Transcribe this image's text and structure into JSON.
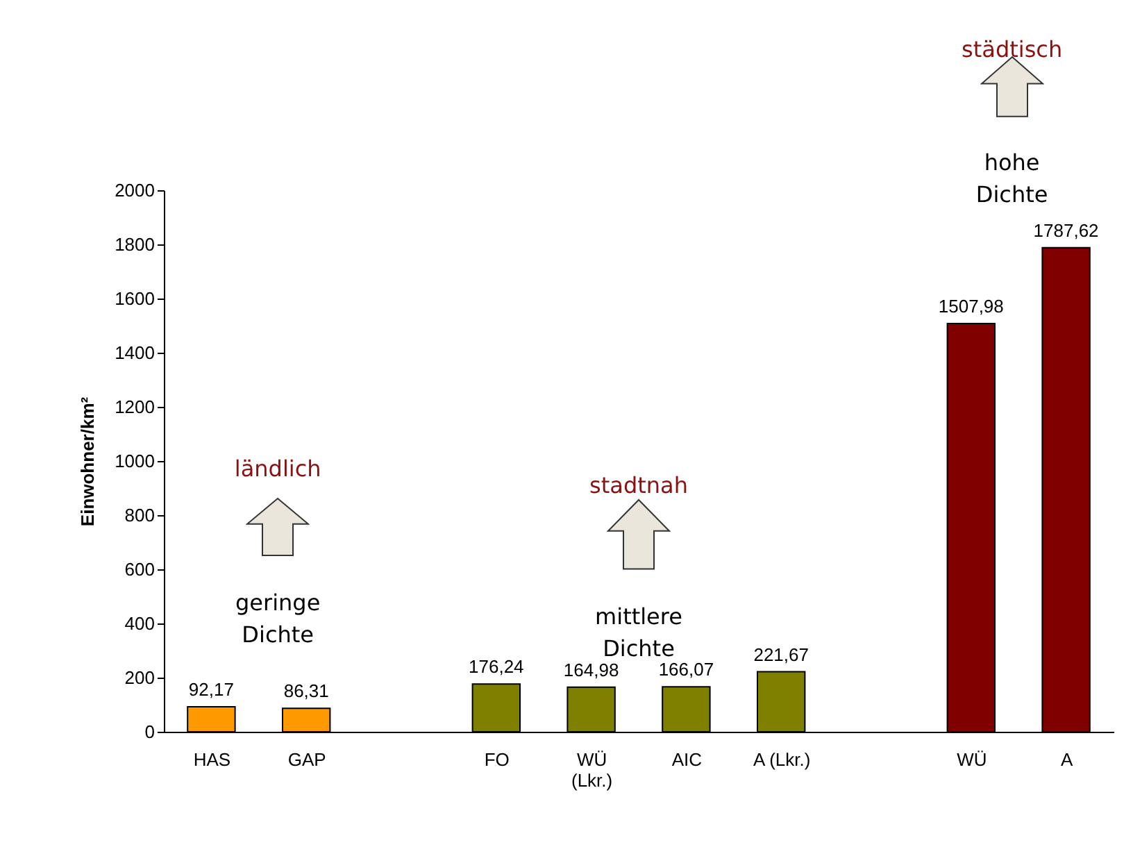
{
  "chart_data": {
    "type": "bar",
    "ylabel": "Einwohner/km²",
    "categories": [
      "HAS",
      "GAP",
      null,
      "FO",
      "WÜ\n(Lkr.)",
      "AIC",
      "A (Lkr.)",
      null,
      "WÜ",
      "A"
    ],
    "values": [
      92.17,
      86.31,
      null,
      176.24,
      164.98,
      166.07,
      221.67,
      null,
      1507.98,
      1787.62
    ],
    "value_labels": [
      "92,17",
      "86,31",
      null,
      "176,24",
      "164,98",
      "166,07",
      "221,67",
      null,
      "1507,98",
      "1787,62"
    ],
    "colors": [
      "#ff9900",
      "#ff9900",
      null,
      "#808000",
      "#808000",
      "#808000",
      "#808000",
      null,
      "#800000",
      "#800000"
    ],
    "ylim": [
      0,
      2000
    ],
    "yticks": [
      0,
      200,
      400,
      600,
      800,
      1000,
      1200,
      1400,
      1600,
      1800,
      2000
    ],
    "annotations": [
      "ländlich",
      "geringe\nDichte",
      "stadtnah",
      "mittlere\nDichte",
      "städtisch",
      "hohe\nDichte"
    ]
  }
}
